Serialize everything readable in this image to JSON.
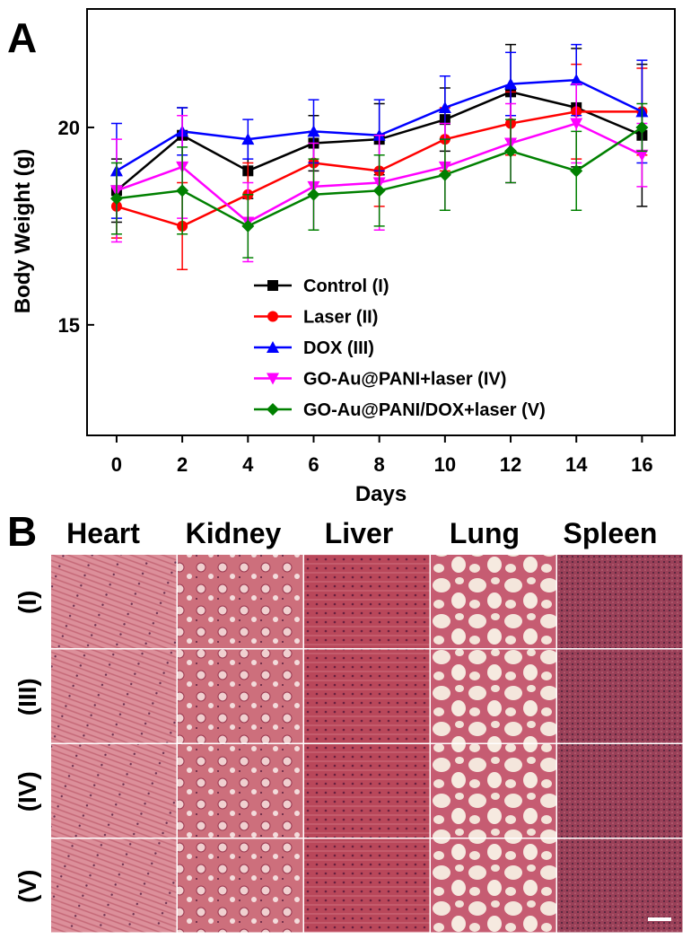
{
  "chart_data": {
    "type": "line",
    "panel_label": "A",
    "x_label": "Days",
    "y_label": "Body Weight (g)",
    "x": [
      0,
      2,
      4,
      6,
      8,
      10,
      12,
      14,
      16
    ],
    "xlim": [
      -0.9,
      17
    ],
    "xticks": [
      0,
      2,
      4,
      6,
      8,
      10,
      12,
      14,
      16
    ],
    "ylim": [
      12.2,
      23
    ],
    "yticks": [
      15,
      20
    ],
    "series": [
      {
        "name": "Control (I)",
        "color": "#000000",
        "marker": "square",
        "values": [
          18.4,
          19.8,
          18.9,
          19.6,
          19.7,
          20.2,
          20.9,
          20.5,
          19.8
        ],
        "errors": [
          0.8,
          0.7,
          0.7,
          0.7,
          0.9,
          0.8,
          1.2,
          1.5,
          1.8
        ]
      },
      {
        "name": "Laser (II)",
        "color": "#ff0000",
        "marker": "circle",
        "values": [
          18.0,
          17.5,
          18.3,
          19.1,
          18.9,
          19.7,
          20.1,
          20.4,
          20.4
        ],
        "errors": [
          0.8,
          1.1,
          0.8,
          0.8,
          0.9,
          0.8,
          0.8,
          1.2,
          1.1
        ]
      },
      {
        "name": "DOX (III)",
        "color": "#0000ff",
        "marker": "triangle-up",
        "values": [
          18.9,
          19.9,
          19.7,
          19.9,
          19.8,
          20.5,
          21.1,
          21.2,
          20.4
        ],
        "errors": [
          1.2,
          0.6,
          0.5,
          0.8,
          0.9,
          0.8,
          0.8,
          0.9,
          1.3
        ]
      },
      {
        "name": "GO-Au@PANI+laser (IV)",
        "color": "#ff00ff",
        "marker": "triangle-down",
        "values": [
          18.4,
          19.0,
          17.6,
          18.5,
          18.6,
          19.0,
          19.6,
          20.1,
          19.3
        ],
        "errors": [
          1.3,
          1.3,
          1.0,
          1.1,
          1.2,
          1.1,
          1.0,
          1.0,
          0.8
        ]
      },
      {
        "name": "GO-Au@PANI/DOX+laser (V)",
        "color": "#008000",
        "marker": "diamond",
        "values": [
          18.2,
          18.4,
          17.5,
          18.3,
          18.4,
          18.8,
          19.4,
          18.9,
          20.0
        ],
        "errors": [
          0.9,
          1.1,
          0.8,
          0.9,
          0.9,
          0.9,
          0.8,
          1.0,
          0.6
        ]
      }
    ]
  },
  "histology": {
    "panel_label": "B",
    "columns": [
      "Heart",
      "Kidney",
      "Liver",
      "Lung",
      "Spleen"
    ],
    "rows": [
      "(I)",
      "(III)",
      "(IV)",
      "(V)"
    ]
  }
}
